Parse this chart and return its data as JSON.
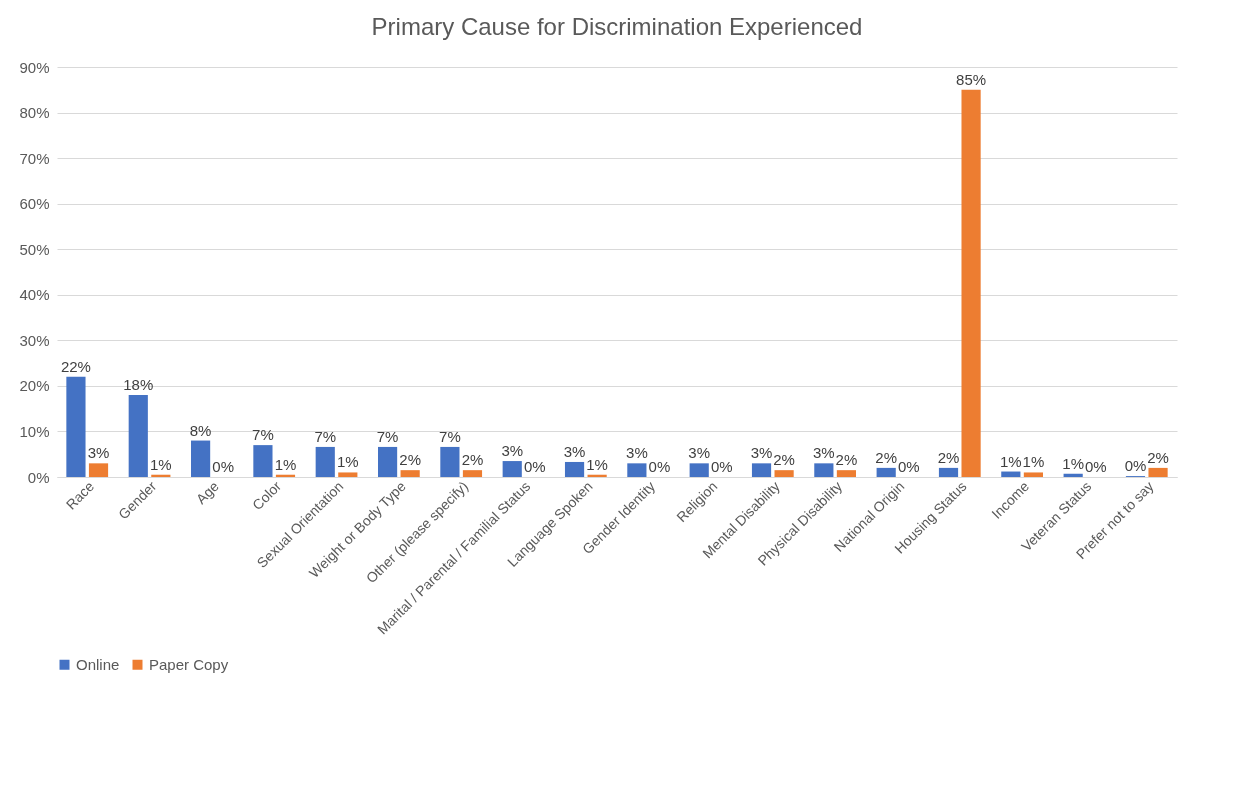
{
  "chart_data": {
    "type": "bar",
    "title": "Primary Cause for Discrimination Experienced",
    "categories": [
      "Race",
      "Gender",
      "Age",
      "Color",
      "Sexual Orientation",
      "Weight or Body Type",
      "Other (please specify)",
      "Marital / Parental / Familial Status",
      "Language Spoken",
      "Gender Identity",
      "Religion",
      "Mental Disability",
      "Physical Disability",
      "National Origin",
      "Housing Status",
      "Income",
      "Veteran Status",
      "Prefer not to say"
    ],
    "series": [
      {
        "name": "Online",
        "color": "#4472c4",
        "values": [
          22,
          18,
          8,
          7,
          6.6,
          6.6,
          6.6,
          3.5,
          3.3,
          3,
          3,
          3,
          3,
          2,
          2,
          1.2,
          0.7,
          0.2
        ],
        "value_labels": [
          "22%",
          "18%",
          "8%",
          "7%",
          "7%",
          "7%",
          "7%",
          "3%",
          "3%",
          "3%",
          "3%",
          "3%",
          "3%",
          "2%",
          "2%",
          "1%",
          "1%",
          "0%"
        ]
      },
      {
        "name": "Paper Copy",
        "color": "#ed7d31",
        "values": [
          3,
          0.5,
          0,
          0.5,
          1,
          1.5,
          1.5,
          0,
          0.5,
          0,
          0,
          1.5,
          1.5,
          0,
          85,
          1,
          0,
          2
        ],
        "value_labels": [
          "3%",
          "1%",
          "0%",
          "1%",
          "1%",
          "2%",
          "2%",
          "0%",
          "1%",
          "0%",
          "0%",
          "2%",
          "2%",
          "0%",
          "85%",
          "1%",
          "0%",
          "2%"
        ]
      }
    ],
    "ylim": [
      0,
      90
    ],
    "yticks": [
      {
        "value": 0,
        "label": "0%"
      },
      {
        "value": 10,
        "label": "10%"
      },
      {
        "value": 20,
        "label": "20%"
      },
      {
        "value": 30,
        "label": "30%"
      },
      {
        "value": 40,
        "label": "40%"
      },
      {
        "value": 50,
        "label": "50%"
      },
      {
        "value": 60,
        "label": "60%"
      },
      {
        "value": 70,
        "label": "70%"
      },
      {
        "value": 80,
        "label": "80%"
      },
      {
        "value": 90,
        "label": "90%"
      }
    ],
    "grid": "y",
    "legend": "bottom"
  }
}
